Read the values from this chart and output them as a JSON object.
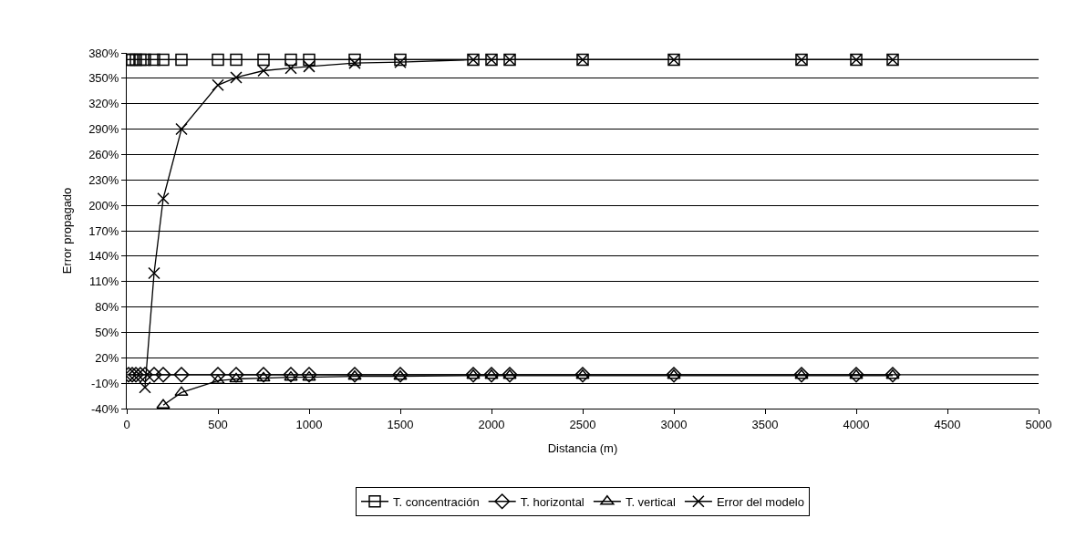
{
  "chart_data": {
    "type": "line",
    "xlabel": "Distancia (m)",
    "ylabel": "Error propagado",
    "xlim": [
      0,
      5000
    ],
    "xticks": [
      0,
      500,
      1000,
      1500,
      2000,
      2500,
      3000,
      3500,
      4000,
      4500,
      5000
    ],
    "ylim": [
      -40,
      380
    ],
    "yticks": [
      {
        "value": -40,
        "label": "-40%"
      },
      {
        "value": -10,
        "label": "-10%"
      },
      {
        "value": 20,
        "label": "20%"
      },
      {
        "value": 50,
        "label": "50%"
      },
      {
        "value": 80,
        "label": "80%"
      },
      {
        "value": 110,
        "label": "110%"
      },
      {
        "value": 140,
        "label": "140%"
      },
      {
        "value": 170,
        "label": "170%"
      },
      {
        "value": 200,
        "label": "200%"
      },
      {
        "value": 230,
        "label": "230%"
      },
      {
        "value": 260,
        "label": "260%"
      },
      {
        "value": 290,
        "label": "290%"
      },
      {
        "value": 320,
        "label": "320%"
      },
      {
        "value": 350,
        "label": "350%"
      },
      {
        "value": 380,
        "label": "380%"
      }
    ],
    "grid": "y",
    "legend": "bottom",
    "ref_lines": [
      {
        "axis": "y",
        "value": 372,
        "color": "#000000"
      },
      {
        "axis": "y",
        "value": 0,
        "color": "#000000"
      }
    ],
    "line_style": "solid",
    "series": [
      {
        "name": "T. concentración",
        "color": "#000000",
        "marker": "square",
        "x": [
          10,
          30,
          50,
          75,
          100,
          150,
          200,
          300,
          500,
          600,
          750,
          900,
          1000,
          1250,
          1500,
          1900,
          2000,
          2100,
          2500,
          3000,
          3700,
          4000,
          4200
        ],
        "values": [
          372,
          372,
          372,
          372,
          372,
          372,
          372,
          372,
          372,
          372,
          372,
          372,
          372,
          372,
          372,
          372,
          372,
          372,
          372,
          372,
          372,
          372,
          372
        ]
      },
      {
        "name": "T. horizontal",
        "color": "#000000",
        "marker": "diamond",
        "x": [
          10,
          30,
          50,
          75,
          100,
          150,
          200,
          300,
          500,
          600,
          750,
          900,
          1000,
          1250,
          1500,
          1900,
          2000,
          2100,
          2500,
          3000,
          3700,
          4000,
          4200
        ],
        "values": [
          0,
          0,
          0,
          0,
          0,
          0,
          0,
          0,
          0,
          0,
          0,
          0,
          0,
          0,
          0,
          0,
          0,
          0,
          0,
          0,
          0,
          0,
          0
        ]
      },
      {
        "name": "T. vertical",
        "color": "#000000",
        "marker": "triangle",
        "x": [
          200,
          300,
          500,
          600,
          750,
          900,
          1000,
          1250,
          1500,
          1900,
          2000,
          2100,
          2500,
          3000,
          3700,
          4000,
          4200
        ],
        "values": [
          -36,
          -21,
          -7,
          -5,
          -4,
          -3,
          -3,
          -2,
          -2,
          -1,
          -1,
          -1,
          -1,
          -1,
          -1,
          -1,
          -1
        ]
      },
      {
        "name": "Error del modelo",
        "color": "#000000",
        "marker": "cross",
        "x": [
          100,
          150,
          200,
          300,
          500,
          600,
          750,
          900,
          1000,
          1250,
          1500,
          1900,
          2000,
          2100,
          2500,
          3000,
          3700,
          4000,
          4200
        ],
        "values": [
          -15,
          120,
          208,
          290,
          342,
          351,
          359,
          362,
          364,
          368,
          369,
          372,
          372,
          372,
          372,
          372,
          372,
          372,
          372
        ]
      }
    ]
  }
}
